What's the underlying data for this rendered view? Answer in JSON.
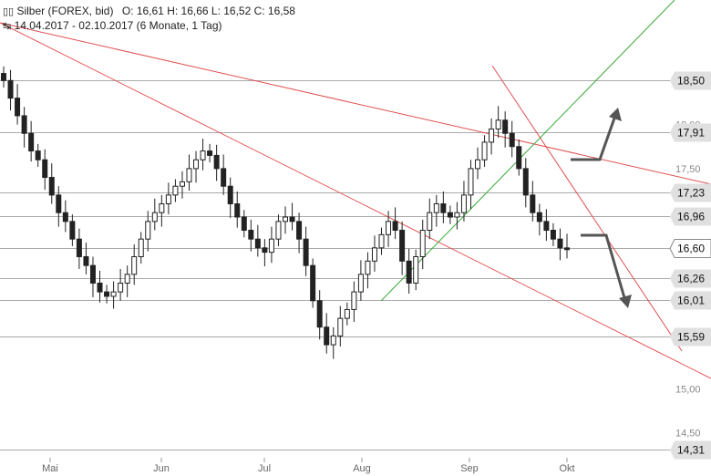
{
  "header": {
    "instrument_icon": "candlestick-icon",
    "title": "Silber (FOREX, bid)",
    "ohlc": "O: 16,61   H: 16,66   L: 16,52   C: 16,58",
    "range_icon": "range-bracket-icon",
    "range": "14.04.2017 - 02.10.2017  (6 Monate, 1 Tag)"
  },
  "colors": {
    "candle": "#222222",
    "trendline_red": "#e05050",
    "trendline_green": "#3aaa3a",
    "level_line": "#aaaaaa",
    "level_box": "#e0e0e0",
    "arrow": "#555555"
  },
  "chart_data": {
    "type": "candlestick",
    "x_range": [
      "2017-04-14",
      "2017-10-02"
    ],
    "ylim": [
      14.3,
      19.0
    ],
    "y_ticks": [
      "18,00",
      "17,50",
      "15,00",
      "14,50"
    ],
    "x_ticks": [
      "Mai",
      "Jun",
      "Jul",
      "Aug",
      "Sep",
      "Okt"
    ],
    "levels": [
      "18,50",
      "17,91",
      "17,23",
      "16,96",
      "16,60",
      "16,26",
      "16,01",
      "15,59",
      "14,31"
    ],
    "current_level": "16,60",
    "last_candle": {
      "open": 16.61,
      "high": 16.66,
      "low": 16.52,
      "close": 16.58
    },
    "series": [
      {
        "values": [
          18.5,
          18.3,
          18.1,
          17.9,
          17.7,
          17.6,
          17.4,
          17.2,
          17.0,
          16.9,
          16.7,
          16.5,
          16.4,
          16.2,
          16.1,
          16.05,
          16.1,
          16.2,
          16.3,
          16.5,
          16.7,
          16.9,
          17.0,
          17.1,
          17.2,
          17.3,
          17.35,
          17.5,
          17.6,
          17.7,
          17.65,
          17.5,
          17.3,
          17.1,
          16.95,
          16.8,
          16.7,
          16.6,
          16.55,
          16.7,
          16.9,
          16.95,
          16.9,
          16.7,
          16.4,
          16.0,
          15.7,
          15.5,
          15.6,
          15.8,
          15.9,
          16.1,
          16.3,
          16.45,
          16.6,
          16.75,
          16.9,
          16.8,
          16.45,
          16.2,
          16.5,
          16.8,
          17.0,
          17.1,
          17.0,
          16.95,
          17.0,
          17.2,
          17.5,
          17.6,
          17.8,
          17.95,
          18.05,
          17.9,
          17.75,
          17.5,
          17.2,
          17.0,
          16.9,
          16.8,
          16.7,
          16.6,
          16.58
        ]
      }
    ]
  }
}
